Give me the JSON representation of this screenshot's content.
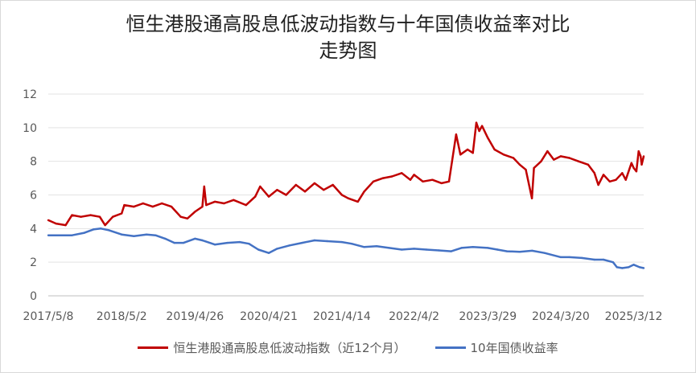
{
  "chart_data": {
    "type": "line",
    "title_lines": [
      "恒生港股通高股息低波动指数与十年国债收益率对比",
      "走势图"
    ],
    "ylim": [
      0,
      12
    ],
    "y_ticks": [
      0,
      2,
      4,
      6,
      8,
      10,
      12
    ],
    "x_tick_labels": [
      "2017/5/8",
      "2018/5/2",
      "2019/4/26",
      "2020/4/21",
      "2021/4/14",
      "2022/4/2",
      "2023/3/29",
      "2024/3/20",
      "2025/3/12"
    ],
    "xlim": [
      "2017/5/8",
      "2025/4/30"
    ],
    "grid": "horizontal",
    "legend_position": "bottom",
    "series": [
      {
        "name": "恒生港股通高股息低波动指数（近12个月）",
        "color": "#c00000",
        "points": [
          [
            "2017/5/8",
            4.5
          ],
          [
            "2017/6/15",
            4.3
          ],
          [
            "2017/8/1",
            4.2
          ],
          [
            "2017/9/1",
            4.8
          ],
          [
            "2017/10/15",
            4.7
          ],
          [
            "2017/12/1",
            4.8
          ],
          [
            "2018/1/15",
            4.7
          ],
          [
            "2018/2/10",
            4.2
          ],
          [
            "2018/3/20",
            4.7
          ],
          [
            "2018/5/2",
            4.9
          ],
          [
            "2018/5/15",
            5.4
          ],
          [
            "2018/7/1",
            5.3
          ],
          [
            "2018/8/15",
            5.5
          ],
          [
            "2018/10/1",
            5.3
          ],
          [
            "2018/11/15",
            5.5
          ],
          [
            "2019/1/1",
            5.3
          ],
          [
            "2019/2/15",
            4.7
          ],
          [
            "2019/3/20",
            4.6
          ],
          [
            "2019/4/26",
            5.0
          ],
          [
            "2019/6/1",
            5.3
          ],
          [
            "2019/6/10",
            6.5
          ],
          [
            "2019/6/20",
            5.4
          ],
          [
            "2019/8/1",
            5.6
          ],
          [
            "2019/9/15",
            5.5
          ],
          [
            "2019/11/1",
            5.7
          ],
          [
            "2020/1/1",
            5.4
          ],
          [
            "2020/2/15",
            5.9
          ],
          [
            "2020/3/10",
            6.5
          ],
          [
            "2020/4/21",
            5.9
          ],
          [
            "2020/6/1",
            6.3
          ],
          [
            "2020/7/15",
            6.0
          ],
          [
            "2020/9/1",
            6.6
          ],
          [
            "2020/10/15",
            6.2
          ],
          [
            "2020/12/1",
            6.7
          ],
          [
            "2021/1/15",
            6.3
          ],
          [
            "2021/3/1",
            6.6
          ],
          [
            "2021/4/14",
            6.0
          ],
          [
            "2021/5/15",
            5.8
          ],
          [
            "2021/7/1",
            5.6
          ],
          [
            "2021/8/1",
            6.2
          ],
          [
            "2021/9/15",
            6.8
          ],
          [
            "2021/11/1",
            7.0
          ],
          [
            "2021/12/15",
            7.1
          ],
          [
            "2022/2/1",
            7.3
          ],
          [
            "2022/3/15",
            6.9
          ],
          [
            "2022/4/2",
            7.2
          ],
          [
            "2022/5/15",
            6.8
          ],
          [
            "2022/7/1",
            6.9
          ],
          [
            "2022/8/15",
            6.7
          ],
          [
            "2022/9/20",
            6.8
          ],
          [
            "2022/10/25",
            9.6
          ],
          [
            "2022/11/15",
            8.4
          ],
          [
            "2022/12/20",
            8.7
          ],
          [
            "2023/1/15",
            8.5
          ],
          [
            "2023/2/1",
            10.3
          ],
          [
            "2023/2/15",
            9.8
          ],
          [
            "2023/3/1",
            10.1
          ],
          [
            "2023/3/29",
            9.4
          ],
          [
            "2023/5/1",
            8.7
          ],
          [
            "2023/6/15",
            8.4
          ],
          [
            "2023/8/1",
            8.2
          ],
          [
            "2023/9/1",
            7.8
          ],
          [
            "2023/10/1",
            7.5
          ],
          [
            "2023/10/31",
            5.8
          ],
          [
            "2023/11/10",
            7.6
          ],
          [
            "2023/12/15",
            8.0
          ],
          [
            "2024/1/15",
            8.6
          ],
          [
            "2024/2/15",
            8.1
          ],
          [
            "2024/3/20",
            8.3
          ],
          [
            "2024/5/1",
            8.2
          ],
          [
            "2024/6/15",
            8.0
          ],
          [
            "2024/8/1",
            7.8
          ],
          [
            "2024/9/1",
            7.3
          ],
          [
            "2024/9/20",
            6.6
          ],
          [
            "2024/10/15",
            7.2
          ],
          [
            "2024/11/15",
            6.8
          ],
          [
            "2024/12/15",
            6.9
          ],
          [
            "2025/1/15",
            7.3
          ],
          [
            "2025/2/1",
            6.9
          ],
          [
            "2025/3/1",
            7.9
          ],
          [
            "2025/3/12",
            7.6
          ],
          [
            "2025/3/25",
            7.4
          ],
          [
            "2025/4/5",
            8.6
          ],
          [
            "2025/4/15",
            8.3
          ],
          [
            "2025/4/20",
            7.8
          ],
          [
            "2025/4/30",
            8.3
          ]
        ]
      },
      {
        "name": "10年国债收益率",
        "color": "#4472c4",
        "points": [
          [
            "2017/5/8",
            3.6
          ],
          [
            "2017/7/1",
            3.6
          ],
          [
            "2017/9/1",
            3.6
          ],
          [
            "2017/11/1",
            3.75
          ],
          [
            "2017/12/15",
            3.95
          ],
          [
            "2018/1/20",
            4.0
          ],
          [
            "2018/3/1",
            3.9
          ],
          [
            "2018/5/2",
            3.65
          ],
          [
            "2018/7/1",
            3.55
          ],
          [
            "2018/9/1",
            3.65
          ],
          [
            "2018/10/15",
            3.6
          ],
          [
            "2018/12/1",
            3.4
          ],
          [
            "2019/1/15",
            3.15
          ],
          [
            "2019/3/1",
            3.15
          ],
          [
            "2019/4/26",
            3.4
          ],
          [
            "2019/6/1",
            3.3
          ],
          [
            "2019/8/1",
            3.05
          ],
          [
            "2019/10/1",
            3.15
          ],
          [
            "2019/12/1",
            3.2
          ],
          [
            "2020/1/15",
            3.1
          ],
          [
            "2020/3/1",
            2.75
          ],
          [
            "2020/4/21",
            2.55
          ],
          [
            "2020/6/1",
            2.8
          ],
          [
            "2020/8/1",
            3.0
          ],
          [
            "2020/10/1",
            3.15
          ],
          [
            "2020/12/1",
            3.3
          ],
          [
            "2021/2/1",
            3.25
          ],
          [
            "2021/4/14",
            3.2
          ],
          [
            "2021/6/1",
            3.1
          ],
          [
            "2021/8/1",
            2.9
          ],
          [
            "2021/10/1",
            2.95
          ],
          [
            "2021/12/1",
            2.85
          ],
          [
            "2022/2/1",
            2.75
          ],
          [
            "2022/4/2",
            2.8
          ],
          [
            "2022/6/1",
            2.75
          ],
          [
            "2022/8/1",
            2.7
          ],
          [
            "2022/10/1",
            2.65
          ],
          [
            "2022/11/20",
            2.85
          ],
          [
            "2023/1/15",
            2.9
          ],
          [
            "2023/3/29",
            2.85
          ],
          [
            "2023/5/15",
            2.75
          ],
          [
            "2023/7/1",
            2.65
          ],
          [
            "2023/9/1",
            2.62
          ],
          [
            "2023/11/1",
            2.68
          ],
          [
            "2024/1/1",
            2.55
          ],
          [
            "2024/3/20",
            2.3
          ],
          [
            "2024/5/1",
            2.3
          ],
          [
            "2024/7/1",
            2.25
          ],
          [
            "2024/9/1",
            2.15
          ],
          [
            "2024/10/15",
            2.15
          ],
          [
            "2024/12/1",
            2.0
          ],
          [
            "2024/12/20",
            1.7
          ],
          [
            "2025/1/15",
            1.65
          ],
          [
            "2025/2/15",
            1.7
          ],
          [
            "2025/3/12",
            1.85
          ],
          [
            "2025/4/10",
            1.7
          ],
          [
            "2025/4/30",
            1.65
          ]
        ]
      }
    ]
  }
}
